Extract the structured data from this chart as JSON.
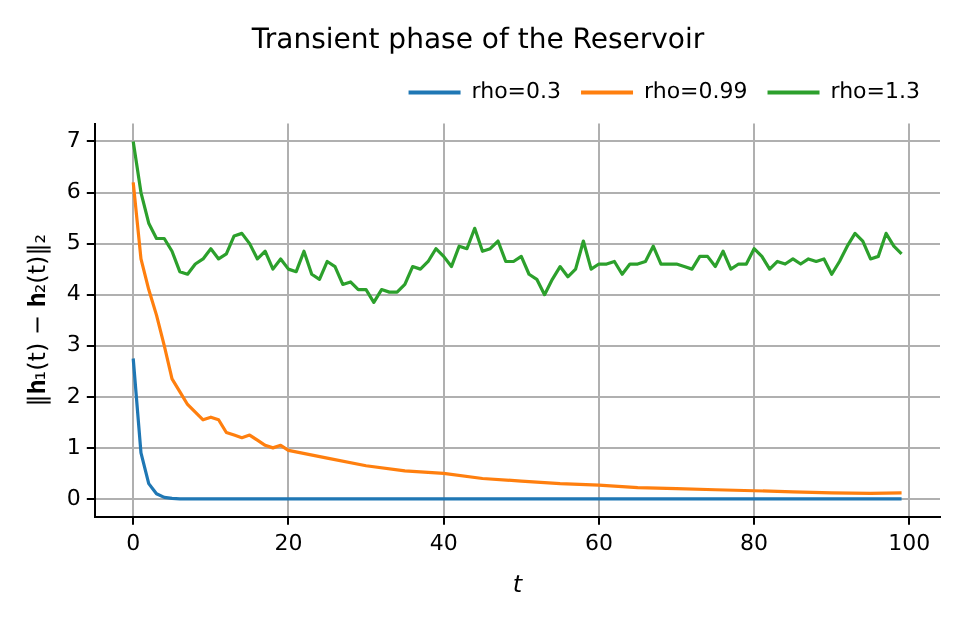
{
  "chart_data": {
    "type": "line",
    "title": "Transient phase of the Reservoir",
    "xlabel": "t",
    "ylabel": "‖𝐡₁(t) − 𝐡₂(t)‖₂",
    "series": [
      {
        "name": "rho=0.3",
        "color": "#1f77b4",
        "x": [
          0,
          1,
          2,
          3,
          4,
          5,
          6,
          7,
          8,
          10,
          99
        ],
        "values": [
          2.75,
          0.9,
          0.3,
          0.1,
          0.03,
          0.01,
          0,
          0,
          0,
          0,
          0
        ]
      },
      {
        "name": "rho=0.99",
        "color": "#ff7f0e",
        "x": [
          0,
          1,
          2,
          3,
          4,
          5,
          6,
          7,
          8,
          9,
          10,
          11,
          12,
          13,
          14,
          15,
          16,
          17,
          18,
          19,
          20,
          25,
          30,
          35,
          40,
          45,
          50,
          55,
          60,
          65,
          70,
          75,
          80,
          85,
          90,
          95,
          99
        ],
        "values": [
          6.2,
          4.7,
          4.1,
          3.6,
          3.0,
          2.35,
          2.1,
          1.85,
          1.7,
          1.55,
          1.6,
          1.55,
          1.3,
          1.25,
          1.2,
          1.25,
          1.15,
          1.05,
          1.0,
          1.05,
          0.95,
          0.8,
          0.65,
          0.55,
          0.5,
          0.4,
          0.35,
          0.3,
          0.27,
          0.22,
          0.2,
          0.18,
          0.16,
          0.14,
          0.12,
          0.11,
          0.12
        ]
      },
      {
        "name": "rho=1.3",
        "color": "#2ca02c",
        "x": [
          0,
          1,
          2,
          3,
          4,
          5,
          6,
          7,
          8,
          9,
          10,
          11,
          12,
          13,
          14,
          15,
          16,
          17,
          18,
          19,
          20,
          21,
          22,
          23,
          24,
          25,
          26,
          27,
          28,
          29,
          30,
          31,
          32,
          33,
          34,
          35,
          36,
          37,
          38,
          39,
          40,
          41,
          42,
          43,
          44,
          45,
          46,
          47,
          48,
          49,
          50,
          51,
          52,
          53,
          54,
          55,
          56,
          57,
          58,
          59,
          60,
          61,
          62,
          63,
          64,
          65,
          66,
          67,
          68,
          69,
          70,
          71,
          72,
          73,
          74,
          75,
          76,
          77,
          78,
          79,
          80,
          81,
          82,
          83,
          84,
          85,
          86,
          87,
          88,
          89,
          90,
          91,
          92,
          93,
          94,
          95,
          96,
          97,
          98,
          99
        ],
        "values": [
          7.0,
          6.0,
          5.4,
          5.1,
          5.1,
          4.85,
          4.45,
          4.4,
          4.6,
          4.7,
          4.9,
          4.7,
          4.8,
          5.15,
          5.2,
          5.0,
          4.7,
          4.85,
          4.5,
          4.7,
          4.5,
          4.45,
          4.85,
          4.4,
          4.3,
          4.65,
          4.55,
          4.2,
          4.25,
          4.1,
          4.1,
          3.85,
          4.1,
          4.05,
          4.05,
          4.2,
          4.55,
          4.5,
          4.65,
          4.9,
          4.75,
          4.55,
          4.95,
          4.9,
          5.3,
          4.85,
          4.9,
          5.05,
          4.65,
          4.65,
          4.75,
          4.4,
          4.3,
          4.0,
          4.3,
          4.55,
          4.35,
          4.5,
          5.05,
          4.5,
          4.6,
          4.6,
          4.65,
          4.4,
          4.6,
          4.6,
          4.65,
          4.95,
          4.6,
          4.6,
          4.6,
          4.55,
          4.5,
          4.75,
          4.75,
          4.55,
          4.85,
          4.5,
          4.6,
          4.6,
          4.9,
          4.75,
          4.5,
          4.65,
          4.6,
          4.7,
          4.6,
          4.7,
          4.65,
          4.7,
          4.4,
          4.65,
          4.95,
          5.2,
          5.05,
          4.7,
          4.75,
          5.2,
          4.95,
          4.8
        ]
      }
    ],
    "xlim": [
      -4.95,
      103.95
    ],
    "xticks": [
      0,
      20,
      40,
      60,
      80,
      100
    ],
    "ylim": [
      -0.35,
      7.35
    ],
    "yticks": [
      0,
      1,
      2,
      3,
      4,
      5,
      6,
      7
    ],
    "grid": true,
    "legend": "top right",
    "marker": "none",
    "line_style": "solid"
  }
}
